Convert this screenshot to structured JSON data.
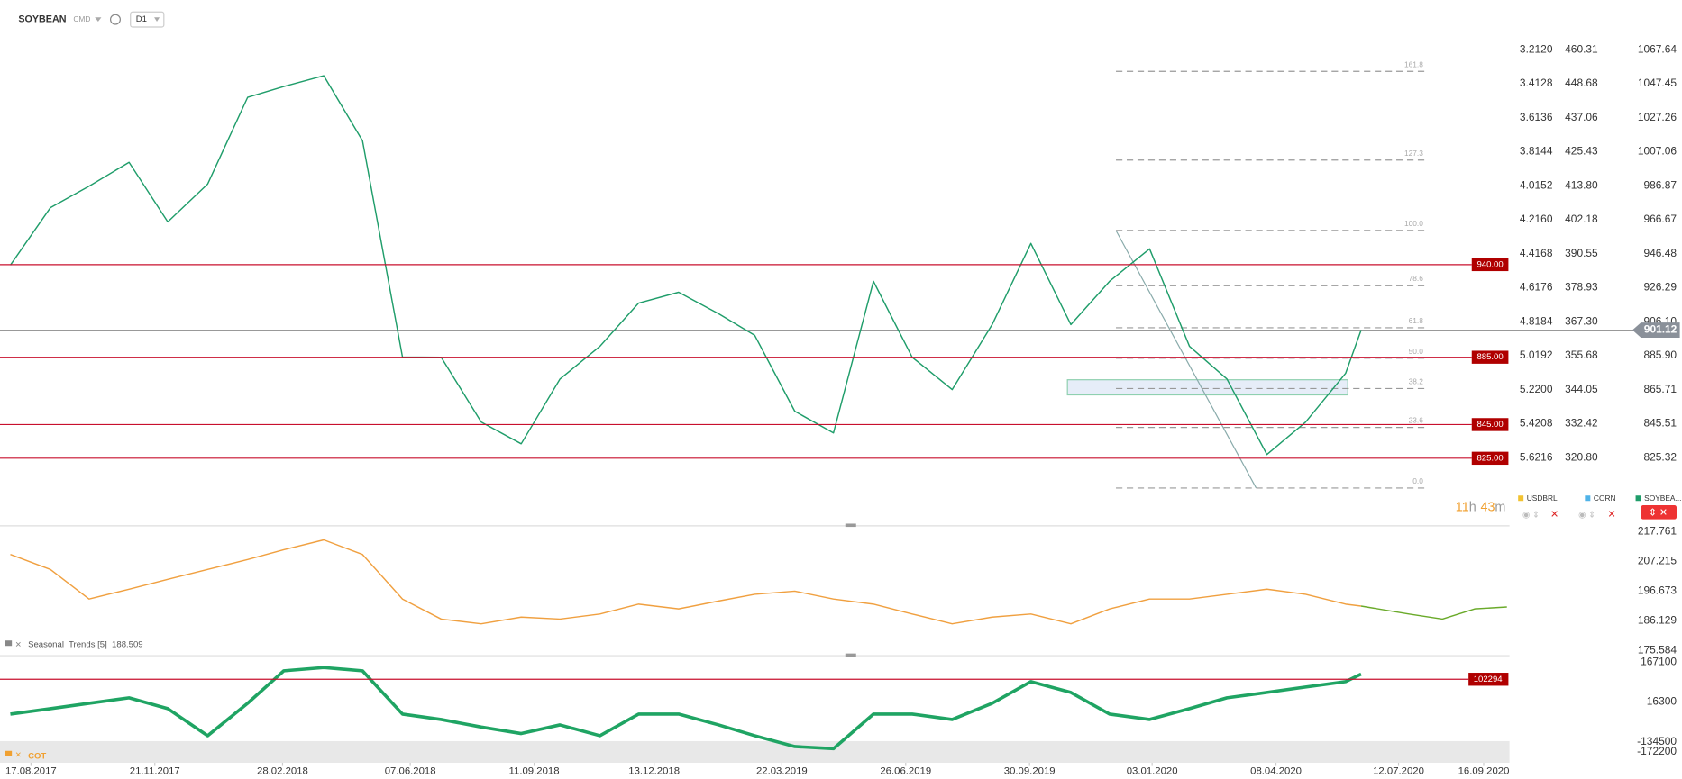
{
  "header": {
    "symbol": "SOYBEAN",
    "market": "CMD",
    "interval": "D1"
  },
  "countdown": {
    "hours": "11",
    "hours_unit": "h",
    "minutes": "43",
    "minutes_unit": "m"
  },
  "chart_data": [
    {
      "type": "line",
      "x": [
        "01.08.2017",
        "01.09.2017",
        "01.10.2017",
        "01.11.2017",
        "01.12.2017",
        "01.01.2018",
        "01.02.2018",
        "01.03.2018",
        "01.04.2018",
        "01.05.2018",
        "01.06.2018",
        "01.07.2018",
        "01.08.2018",
        "01.09.2018",
        "01.10.2018",
        "01.11.2018",
        "01.12.2018",
        "01.01.2019",
        "01.02.2019",
        "01.03.2019",
        "01.04.2019",
        "01.05.2019",
        "01.06.2019",
        "01.07.2019",
        "01.08.2019",
        "01.09.2019",
        "01.10.2019",
        "01.11.2019",
        "01.12.2019",
        "01.01.2020",
        "01.02.2020",
        "01.03.2020",
        "01.04.2020",
        "01.05.2020",
        "01.06.2020",
        "13.06.2020"
      ],
      "series": [
        {
          "name": "SOYBEA...",
          "color": "#1f9d6a",
          "values": [
            939.7,
            973.8,
            986.6,
            1000.8,
            965.4,
            987.9,
            1039.4,
            1045.8,
            1052.2,
            1013.6,
            885.1,
            885.0,
            846.5,
            833.6,
            872.0,
            891.5,
            917.2,
            923.6,
            910.8,
            898.0,
            852.9,
            840.0,
            930.1,
            885.0,
            865.8,
            904.4,
            952.6,
            904.4,
            930.1,
            949.4,
            891.5,
            872.1,
            827.2,
            846.5,
            875.4,
            901.1
          ]
        }
      ],
      "xlim": [
        "24.07.2017",
        "06.10.2020"
      ],
      "xticks": [
        "17.08.2017",
        "21.11.2017",
        "28.02.2018",
        "07.06.2018",
        "11.09.2018",
        "13.12.2018",
        "22.03.2019",
        "26.06.2019",
        "30.09.2019",
        "03.01.2020",
        "08.04.2020",
        "12.07.2020",
        "16.09.2020"
      ],
      "ylim": [
        785.5,
        1097.2
      ],
      "yticks": [
        1067.64,
        1047.45,
        1027.26,
        1007.06,
        986.87,
        966.67,
        946.48,
        926.29,
        {
          "value": 906.1,
          "label": "906.10"
        },
        {
          "value": 885.9,
          "label": "885.90"
        },
        865.71,
        845.51,
        825.32
      ],
      "levels": [
        {
          "value": 940,
          "label": "940.00"
        },
        {
          "value": 885,
          "label": "885.00"
        },
        {
          "value": 845,
          "label": "845.00"
        },
        {
          "value": 825,
          "label": "825.00"
        }
      ],
      "last_price": {
        "value": 901.12,
        "label": "901.12"
      },
      "fib": [
        {
          "level": "161.8",
          "price": 1054.8
        },
        {
          "level": "127.3",
          "price": 1002.1
        },
        {
          "level": "100.0",
          "price": 960.3
        },
        {
          "level": "78.6",
          "price": 927.5
        },
        {
          "level": "61.8",
          "price": 902.5
        },
        {
          "level": "50.0",
          "price": 884.4
        },
        {
          "level": "38.2",
          "price": 866.4
        },
        {
          "level": "23.6",
          "price": 843.3
        },
        {
          "level": "0.0",
          "price": 807.3
        }
      ],
      "overlays": [
        {
          "name": "USDBRL",
          "color": "#f2c230",
          "ylim": [
            6.018,
            2.918
          ],
          "yticks": [
            {
              "value": 3.212,
              "label": "3.2120"
            },
            3.4128,
            3.6136,
            3.8144,
            4.0152,
            {
              "value": 4.216,
              "label": "4.2160"
            },
            4.4168,
            4.6176,
            4.8184,
            5.0192,
            {
              "value": 5.22,
              "label": "5.2200"
            },
            5.4208,
            5.6216
          ]
        },
        {
          "name": "CORN",
          "color": "#4fb3e8",
          "ylim": [
            297.86,
            477.33
          ],
          "yticks": [
            460.31,
            448.68,
            437.06,
            425.43,
            {
              "value": 413.8,
              "label": "413.80"
            },
            402.18,
            390.55,
            378.93,
            {
              "value": 367.3,
              "label": "367.30"
            },
            355.68,
            344.05,
            332.42,
            {
              "value": 320.8,
              "label": "320.80"
            }
          ]
        }
      ]
    },
    {
      "type": "line",
      "label": "Seasonal  Trends [5]  188.509",
      "x": [
        "01.08.2017",
        "01.09.2017",
        "01.10.2017",
        "01.11.2017",
        "01.12.2017",
        "01.01.2018",
        "01.02.2018",
        "01.03.2018",
        "01.04.2018",
        "01.05.2018",
        "01.06.2018",
        "01.07.2018",
        "01.08.2018",
        "01.09.2018",
        "01.10.2018",
        "01.11.2018",
        "01.12.2018",
        "01.01.2019",
        "01.02.2019",
        "01.03.2019",
        "01.04.2019",
        "01.05.2019",
        "01.06.2019",
        "01.07.2019",
        "01.08.2019",
        "01.09.2019",
        "01.10.2019",
        "01.11.2019",
        "01.12.2019",
        "01.01.2020",
        "01.02.2020",
        "01.03.2020",
        "01.04.2020",
        "01.05.2020",
        "01.06.2020",
        "13.06.2020",
        "20.07.2020",
        "15.08.2020",
        "09.09.2020",
        "04.10.2020"
      ],
      "series": [
        {
          "color": "#f0a040",
          "values": [
            209.7,
            204.4,
            193.9,
            197.4,
            200.9,
            204.4,
            207.9,
            211.4,
            214.9,
            209.7,
            193.9,
            186.8,
            185.1,
            187.5,
            186.8,
            188.6,
            192.1,
            190.4,
            193.2,
            195.6,
            196.7,
            193.9,
            192.1,
            188.6,
            185.1,
            187.5,
            188.6,
            185.1,
            190.4,
            193.9,
            193.9,
            195.6,
            197.4,
            195.6,
            192.1,
            191.4,
            null,
            null,
            null,
            null
          ]
        },
        {
          "color": "#6aaa2a",
          "values": [
            null,
            null,
            null,
            null,
            null,
            null,
            null,
            null,
            null,
            null,
            null,
            null,
            null,
            null,
            null,
            null,
            null,
            null,
            null,
            null,
            null,
            null,
            null,
            null,
            null,
            null,
            null,
            null,
            null,
            null,
            null,
            null,
            null,
            null,
            null,
            191.4,
            188.6,
            186.8,
            190.4,
            191.1
          ]
        }
      ],
      "xlim": [
        "24.07.2017",
        "06.10.2020"
      ],
      "ylim": [
        174.2,
        219.5
      ],
      "yticks": [
        217.761,
        207.215,
        196.673,
        186.129,
        175.584
      ]
    },
    {
      "type": "line",
      "label": "COT",
      "x": [
        "01.08.2017",
        "01.09.2017",
        "01.10.2017",
        "01.11.2017",
        "01.12.2017",
        "01.01.2018",
        "01.02.2018",
        "01.03.2018",
        "01.04.2018",
        "01.05.2018",
        "01.06.2018",
        "01.07.2018",
        "01.08.2018",
        "01.09.2018",
        "01.10.2018",
        "01.11.2018",
        "01.12.2018",
        "01.01.2019",
        "01.02.2019",
        "01.03.2019",
        "01.04.2019",
        "01.05.2019",
        "01.06.2019",
        "01.07.2019",
        "01.08.2019",
        "01.09.2019",
        "01.10.2019",
        "01.11.2019",
        "01.12.2019",
        "01.01.2020",
        "01.02.2020",
        "01.03.2020",
        "01.04.2020",
        "01.05.2020",
        "01.06.2020",
        "13.06.2020"
      ],
      "series": [
        {
          "color": "#1fa463",
          "values": [
            -29700,
            -9200,
            11300,
            31800,
            -9200,
            -111700,
            11300,
            134300,
            146600,
            134300,
            -29700,
            -50200,
            -78900,
            -103500,
            -70700,
            -111700,
            -29700,
            -29700,
            -70700,
            -111700,
            -152700,
            -160900,
            -29700,
            -29700,
            -50200,
            11300,
            93300,
            52300,
            -29700,
            -50200,
            -9200,
            31800,
            52300,
            72800,
            93300,
            121900
          ]
        }
      ],
      "xlim": [
        "24.07.2017",
        "06.10.2020"
      ],
      "ylim": [
        -214200,
        187600
      ],
      "yticks": [
        167100,
        16300,
        -134500,
        -172200
      ],
      "level": 102294
    }
  ]
}
